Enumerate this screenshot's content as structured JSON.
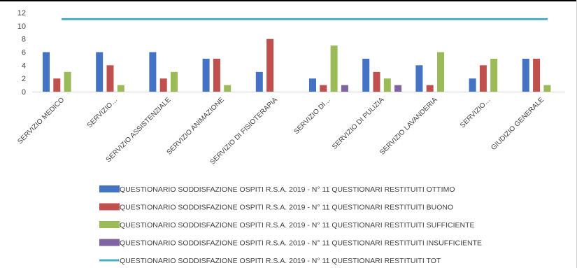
{
  "chart_data": {
    "type": "bar",
    "categories": [
      "SERVIZIO MEDICO",
      "SERVIZIO…",
      "SERVIZIO ASSISTENZIALE",
      "SERVIZIO ANIMAZIONE",
      "SERVIZIO DI FISIOTERAPIA",
      "SERVIZIO DI…",
      "SERVIZIO DI PULIZIA",
      "SERVIZIO LAVANDERIA",
      "SERVIZIO…",
      "GIUDIZIO GENERALE"
    ],
    "series": [
      {
        "name": "QUESTIONARIO SODDISFAZIONE OSPITI R.S.A. 2019 - N° 11 QUESTIONARI RESTITUITI OTTIMO",
        "type": "bar",
        "color": "#4472C4",
        "values": [
          6,
          6,
          6,
          5,
          3,
          2,
          5,
          4,
          2,
          5
        ]
      },
      {
        "name": "QUESTIONARIO SODDISFAZIONE OSPITI R.S.A. 2019 - N° 11 QUESTIONARI RESTITUITI BUONO",
        "type": "bar",
        "color": "#C0504D",
        "values": [
          2,
          4,
          2,
          5,
          8,
          1,
          3,
          1,
          4,
          5
        ]
      },
      {
        "name": "QUESTIONARIO SODDISFAZIONE OSPITI R.S.A. 2019 - N° 11 QUESTIONARI RESTITUITI SUFFICIENTE",
        "type": "bar",
        "color": "#9BBB59",
        "values": [
          3,
          1,
          3,
          1,
          0,
          7,
          2,
          6,
          5,
          1
        ]
      },
      {
        "name": "QUESTIONARIO SODDISFAZIONE OSPITI R.S.A. 2019 - N° 11 QUESTIONARI RESTITUITI INSUFFICIENTE",
        "type": "bar",
        "color": "#8064A2",
        "values": [
          0,
          0,
          0,
          0,
          0,
          1,
          1,
          0,
          0,
          0
        ]
      },
      {
        "name": "QUESTIONARIO SODDISFAZIONE OSPITI R.S.A. 2019 - N° 11 QUESTIONARI RESTITUITI TOT",
        "type": "line",
        "color": "#4BACC6",
        "values": [
          11,
          11,
          11,
          11,
          11,
          11,
          11,
          11,
          11,
          11
        ]
      }
    ],
    "yticks": [
      "0",
      "2",
      "4",
      "6",
      "8",
      "10",
      "12"
    ],
    "ylim": [
      0,
      12
    ],
    "grid": false,
    "legend_position": "bottom"
  }
}
